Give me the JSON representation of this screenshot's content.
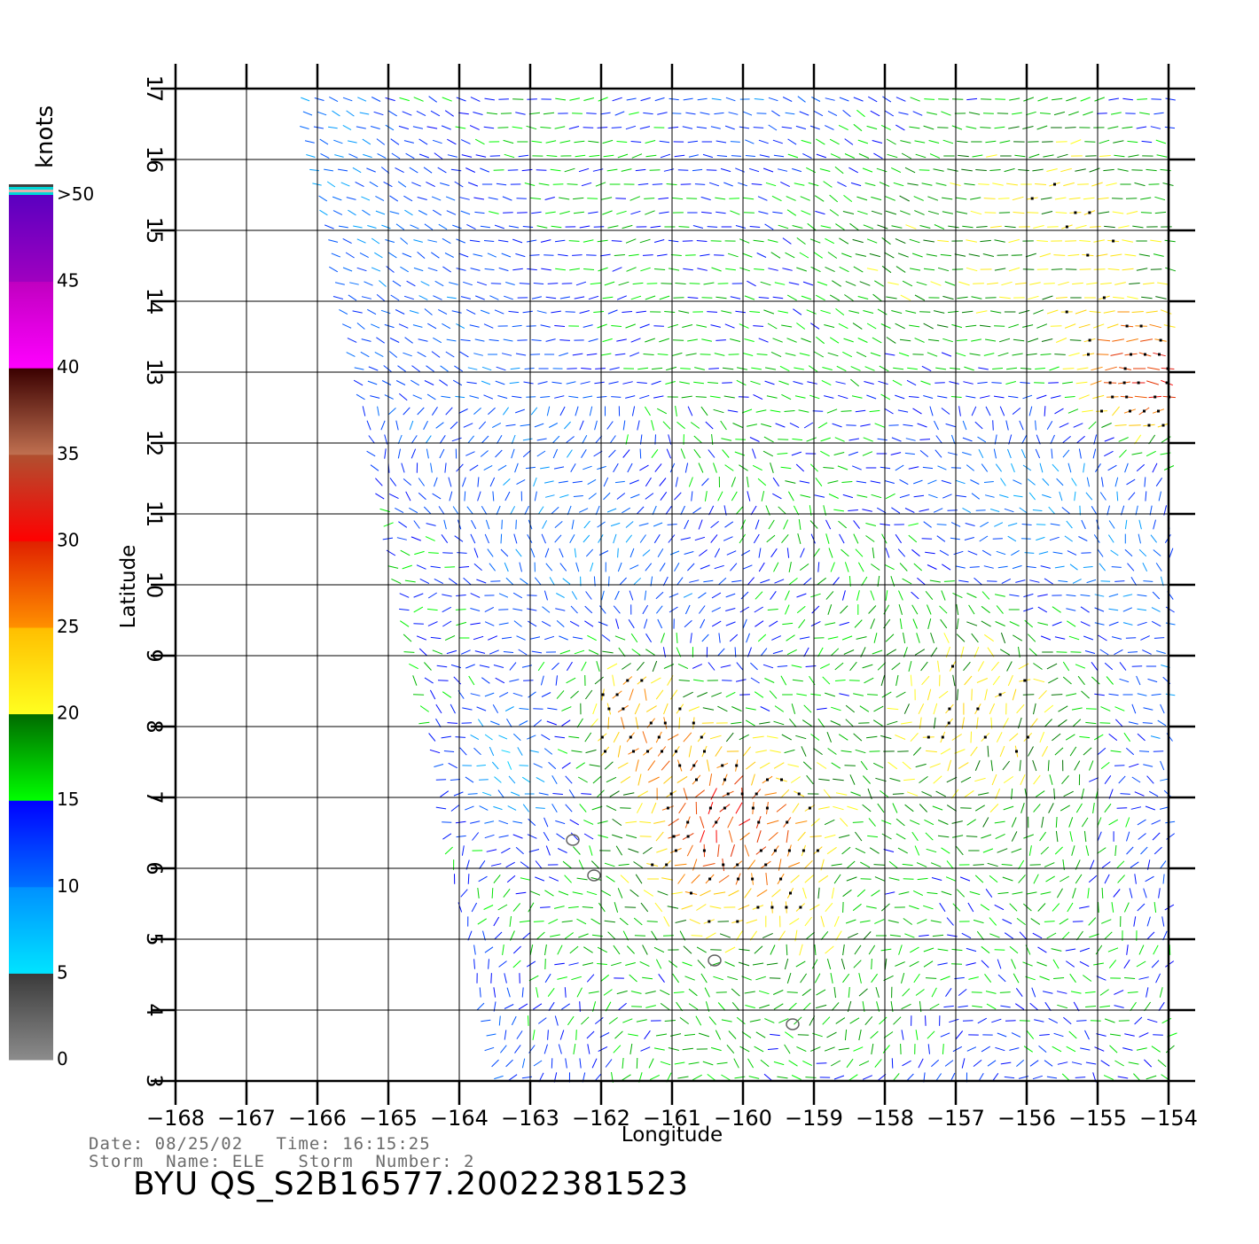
{
  "colorbar": {
    "unit": "knots",
    "segments": [
      {
        "from": 0,
        "to": 5,
        "top": "#3a3a3a",
        "bottom": "#8c8c8c"
      },
      {
        "from": 5,
        "to": 10,
        "top": "#0090ff",
        "bottom": "#00e4ff"
      },
      {
        "from": 10,
        "to": 15,
        "top": "#0000ff",
        "bottom": "#0070ff"
      },
      {
        "from": 15,
        "to": 20,
        "top": "#006a00",
        "bottom": "#00ff00"
      },
      {
        "from": 20,
        "to": 25,
        "top": "#ffbe00",
        "bottom": "#ffff20"
      },
      {
        "from": 25,
        "to": 30,
        "top": "#e02000",
        "bottom": "#ff9000"
      },
      {
        "from": 30,
        "to": 35,
        "top": "#b05030",
        "bottom": "#ff0000"
      },
      {
        "from": 35,
        "to": 40,
        "top": "#3a0000",
        "bottom": "#c07050"
      },
      {
        "from": 40,
        "to": 45,
        "top": "#c000c0",
        "bottom": "#ff00ff"
      },
      {
        "from": 45,
        "to": 50,
        "top": "#5a00c0",
        "bottom": "#a000c0"
      }
    ],
    "labels": [
      "0",
      "5",
      "10",
      "15",
      "20",
      "25",
      "30",
      "35",
      "40",
      "45",
      ">50"
    ]
  },
  "map": {
    "xlabel": "Longitude",
    "ylabel": "Latitude",
    "lon_range": [
      -168,
      -154
    ],
    "lat_range": [
      3,
      17
    ],
    "lon_ticks": [
      "−168",
      "−167",
      "−166",
      "−165",
      "−164",
      "−163",
      "−162",
      "−161",
      "−160",
      "−159",
      "−158",
      "−157",
      "−156",
      "−155",
      "−154"
    ],
    "lat_ticks": [
      "3",
      "4",
      "5",
      "6",
      "7",
      "8",
      "9",
      "10",
      "11",
      "12",
      "13",
      "14",
      "15",
      "16",
      "17"
    ],
    "swath": {
      "left_edge_lon_at_top": -166.3,
      "left_edge_lon_at_bottom": -163.5
    },
    "speed_zones": [
      {
        "lon": -160.2,
        "lat": 6.6,
        "radius_deg": 1.4,
        "speed": 30
      },
      {
        "lon": -161.6,
        "lat": 8.2,
        "radius_deg": 1.0,
        "speed": 25
      },
      {
        "lon": -154.4,
        "lat": 12.9,
        "radius_deg": 0.8,
        "speed": 34
      },
      {
        "lon": -155.5,
        "lat": 14.8,
        "radius_deg": 1.6,
        "speed": 22
      },
      {
        "lon": -158.0,
        "lat": 14.5,
        "radius_deg": 2.2,
        "speed": 18
      },
      {
        "lon": -156.5,
        "lat": 8.2,
        "radius_deg": 1.6,
        "speed": 22
      },
      {
        "lon": -158.5,
        "lat": 4.4,
        "radius_deg": 2.0,
        "speed": 18
      },
      {
        "lon": -163.2,
        "lat": 7.5,
        "radius_deg": 1.0,
        "speed": 7
      },
      {
        "lon": -155.8,
        "lat": 11.5,
        "radius_deg": 1.4,
        "speed": 9
      },
      {
        "lon": -165.0,
        "lat": 13.0,
        "radius_deg": 2.0,
        "speed": 12
      }
    ],
    "islands": [
      {
        "lon": -162.4,
        "lat": 6.4
      },
      {
        "lon": -162.1,
        "lat": 5.9
      },
      {
        "lon": -160.4,
        "lat": 4.7
      },
      {
        "lon": -159.3,
        "lat": 3.8
      }
    ]
  },
  "footer": {
    "date_label": "Date:",
    "date": "08/25/02",
    "time_label": "Time:",
    "time": "16:15:25",
    "storm_name_label": "Storm  Name:",
    "storm_name": "ELE",
    "storm_number_label": "Storm  Number:",
    "storm_number": "2",
    "product_id": "BYU  QS_S2B16577.20022381523"
  }
}
